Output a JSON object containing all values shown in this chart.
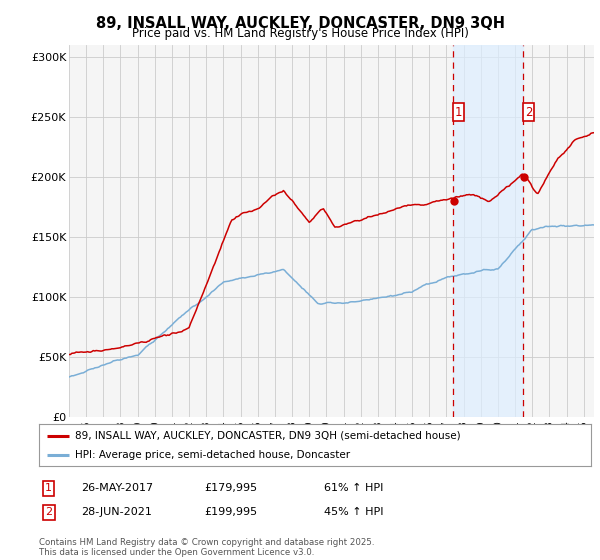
{
  "title": "89, INSALL WAY, AUCKLEY, DONCASTER, DN9 3QH",
  "subtitle": "Price paid vs. HM Land Registry's House Price Index (HPI)",
  "legend_label_red": "89, INSALL WAY, AUCKLEY, DONCASTER, DN9 3QH (semi-detached house)",
  "legend_label_blue": "HPI: Average price, semi-detached house, Doncaster",
  "sale1_date": "26-MAY-2017",
  "sale1_price": "£179,995",
  "sale1_pct": "61% ↑ HPI",
  "sale2_date": "28-JUN-2021",
  "sale2_price": "£199,995",
  "sale2_pct": "45% ↑ HPI",
  "footer": "Contains HM Land Registry data © Crown copyright and database right 2025.\nThis data is licensed under the Open Government Licence v3.0.",
  "red_color": "#cc0000",
  "blue_color": "#7aaed6",
  "vline_color": "#cc0000",
  "dot_color": "#cc0000",
  "background_chart": "#f5f5f5",
  "grid_color": "#cccccc",
  "span_color": "#ddeeff",
  "ylim": [
    0,
    310000
  ],
  "yticks": [
    0,
    50000,
    100000,
    150000,
    200000,
    250000,
    300000
  ],
  "ytick_labels": [
    "£0",
    "£50K",
    "£100K",
    "£150K",
    "£200K",
    "£250K",
    "£300K"
  ],
  "xstart": 1995,
  "xend": 2025,
  "sale1_x": 2017.4,
  "sale2_x": 2021.49
}
